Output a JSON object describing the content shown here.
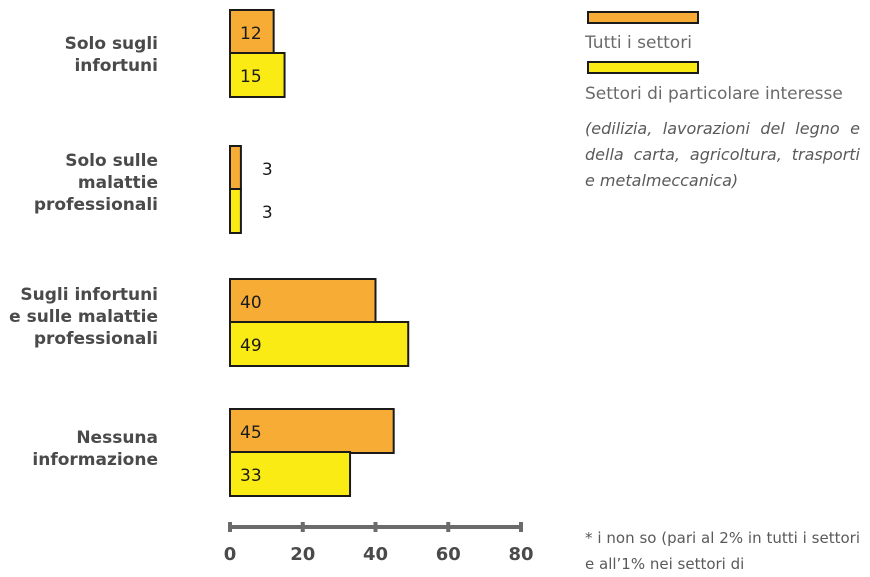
{
  "chart_data": {
    "type": "bar",
    "orientation": "horizontal",
    "categories": [
      "Solo sugli\ninfortuni",
      "Solo sulle\nmalattie\nprofessionali",
      "Sugli infortuni\ne sulle malattie\nprofessionali",
      "Nessuna\ninformazione"
    ],
    "series": [
      {
        "name": "Tutti i settori",
        "values": [
          12,
          3,
          40,
          45
        ],
        "color": "#f7ad35"
      },
      {
        "name": "Settori di particolare interesse",
        "values": [
          15,
          3,
          49,
          33
        ],
        "color": "#faeb14"
      }
    ],
    "xlim": [
      0,
      80
    ],
    "x_ticks": [
      0,
      20,
      40,
      60,
      80
    ],
    "grid": false,
    "legend_position": "right"
  },
  "legend": {
    "note": "(edilizia, lavorazioni del legno e della carta, agricoltura, trasporti e metalmeccanica)"
  },
  "footnote": "* i non so (pari al 2% in tutti i settori e all’1% nei settori di"
}
